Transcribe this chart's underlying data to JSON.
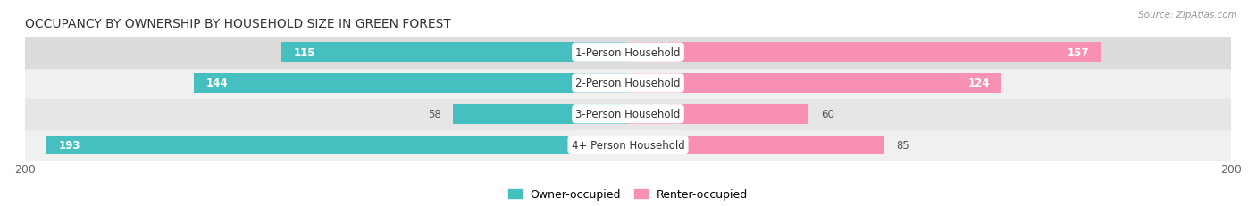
{
  "title": "OCCUPANCY BY OWNERSHIP BY HOUSEHOLD SIZE IN GREEN FOREST",
  "source": "Source: ZipAtlas.com",
  "categories": [
    "1-Person Household",
    "2-Person Household",
    "3-Person Household",
    "4+ Person Household"
  ],
  "owner_values": [
    115,
    144,
    58,
    193
  ],
  "renter_values": [
    157,
    124,
    60,
    85
  ],
  "owner_color": "#45BFBF",
  "renter_color": "#F890B4",
  "row_bg_colors": [
    "#F0F0F0",
    "#E6E6E6",
    "#F0F0F0",
    "#DCDCDC"
  ],
  "max_value": 200,
  "label_fontsize": 8.5,
  "title_fontsize": 10,
  "bar_height": 0.62,
  "figsize": [
    14.06,
    2.32
  ],
  "dpi": 100,
  "inside_label_threshold_owner": 80,
  "inside_label_threshold_renter": 100
}
